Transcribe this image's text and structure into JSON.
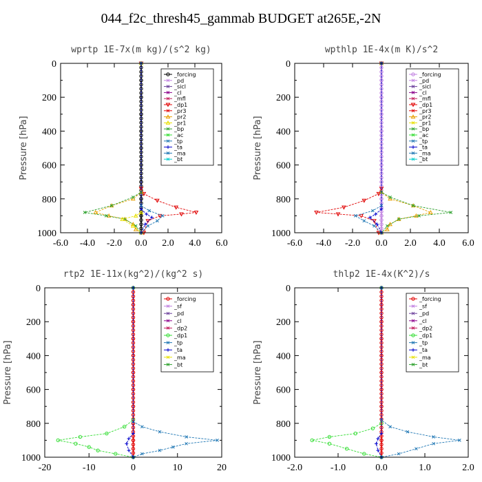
{
  "title": "044_f2c_thresh45_gammab  BUDGET at265E,-2N",
  "chart_data": [
    {
      "type": "line",
      "title": "wprtp  1E-7x(m kg)/(s^2 kg)",
      "ylabel": "Pressure [hPa]",
      "xlim": [
        -6,
        6
      ],
      "ylim": [
        1000,
        0
      ],
      "xticks": [
        "-6.0",
        "-4.0",
        "-2.0",
        "0.0",
        "2.0",
        "4.0",
        "6.0"
      ],
      "yticks": [
        "0",
        "200",
        "400",
        "600",
        "800",
        "1000"
      ],
      "legend": [
        "_forcing",
        "_pd",
        "_sicl",
        "_cl",
        "_mfl",
        "_dp1",
        "_pr3",
        "_pr2",
        "_pr1",
        "_bp",
        "_ac",
        "_tp",
        "_ta",
        "_ma",
        "_bt"
      ],
      "series": [
        {
          "name": "_forcing",
          "color": "#000000",
          "marker": "o",
          "x": [
            0,
            0,
            0,
            0,
            0,
            0,
            0,
            0,
            0,
            0,
            0
          ],
          "y": [
            0,
            100,
            200,
            300,
            400,
            500,
            600,
            700,
            800,
            900,
            1000
          ]
        },
        {
          "name": "_dp1",
          "color": "#e00000",
          "marker": "v",
          "x": [
            0,
            0,
            0.2,
            1.2,
            2.6,
            4.1,
            3.0,
            1.4,
            0.5,
            0.2
          ],
          "y": [
            0,
            740,
            770,
            810,
            850,
            880,
            890,
            900,
            930,
            1000
          ]
        },
        {
          "name": "_pr2",
          "color": "#e8a000",
          "marker": "^",
          "x": [
            0,
            0,
            -0.6,
            -2.2,
            -3.4,
            -2.4,
            -1.2,
            -0.6,
            -0.4,
            0
          ],
          "y": [
            0,
            760,
            800,
            840,
            880,
            900,
            920,
            950,
            980,
            1000
          ]
        },
        {
          "name": "_bp",
          "color": "#2ca02c",
          "marker": "x",
          "x": [
            0,
            0,
            -0.6,
            -2.2,
            -4.2,
            -2.6,
            -1.2,
            -0.4,
            0
          ],
          "y": [
            0,
            760,
            790,
            840,
            880,
            900,
            920,
            960,
            1000
          ]
        },
        {
          "name": "_pr1",
          "color": "#e8e000",
          "marker": "^",
          "x": [
            0,
            0,
            -0.4,
            -1.4,
            -0.6,
            0
          ],
          "y": [
            0,
            880,
            900,
            920,
            960,
            1000
          ]
        },
        {
          "name": "_tp",
          "color": "#1f77b4",
          "marker": "x",
          "x": [
            0,
            0,
            0.6,
            1.6,
            1.2,
            0.5,
            0
          ],
          "y": [
            0,
            840,
            870,
            900,
            930,
            960,
            1000
          ]
        },
        {
          "name": "_ta",
          "color": "#0000cc",
          "marker": "+",
          "x": [
            0,
            0,
            0.4,
            0.8,
            0.3,
            0
          ],
          "y": [
            0,
            860,
            890,
            910,
            950,
            1000
          ]
        }
      ]
    },
    {
      "type": "line",
      "title": "wpthlp  1E-4x(m K)/s^2",
      "ylabel": "Pressure [hPa]",
      "xlim": [
        -6,
        6
      ],
      "ylim": [
        1000,
        0
      ],
      "xticks": [
        "-6.0",
        "-4.0",
        "-2.0",
        "0.0",
        "2.0",
        "4.0",
        "6.0"
      ],
      "yticks": [
        "0",
        "200",
        "400",
        "600",
        "800",
        "1000"
      ],
      "legend": [
        "_forcing",
        "_pd",
        "_sicl",
        "_cl",
        "_mfl",
        "_dp1",
        "_pr3",
        "_pr2",
        "_pr1",
        "_bp",
        "_ac",
        "_tp",
        "_ta",
        "_ma",
        "_bt"
      ],
      "series": [
        {
          "name": "_forcing",
          "color": "#c080e0",
          "marker": "o",
          "x": [
            0,
            0,
            0,
            0,
            0,
            0,
            0,
            0,
            0,
            0,
            0
          ],
          "y": [
            0,
            100,
            200,
            300,
            400,
            500,
            600,
            700,
            800,
            900,
            1000
          ]
        },
        {
          "name": "_dp1",
          "color": "#e00000",
          "marker": "v",
          "x": [
            0,
            0,
            -0.2,
            -1.2,
            -2.6,
            -4.5,
            -3.0,
            -1.4,
            -0.5,
            -0.2
          ],
          "y": [
            0,
            740,
            770,
            810,
            850,
            880,
            890,
            900,
            930,
            1000
          ]
        },
        {
          "name": "_pr2",
          "color": "#e8a000",
          "marker": "^",
          "x": [
            0,
            0,
            0.6,
            2.2,
            3.4,
            2.4,
            1.2,
            0.6,
            0.4,
            0
          ],
          "y": [
            0,
            760,
            800,
            840,
            880,
            900,
            920,
            950,
            980,
            1000
          ]
        },
        {
          "name": "_bp",
          "color": "#2ca02c",
          "marker": "x",
          "x": [
            0,
            0,
            0.6,
            2.2,
            4.8,
            2.6,
            1.2,
            0.4,
            0
          ],
          "y": [
            0,
            760,
            790,
            840,
            880,
            900,
            920,
            960,
            1000
          ]
        },
        {
          "name": "_tp",
          "color": "#1f77b4",
          "marker": "x",
          "x": [
            0,
            0,
            -0.6,
            -1.8,
            -1.2,
            -0.5,
            0
          ],
          "y": [
            0,
            840,
            870,
            900,
            930,
            960,
            1000
          ]
        },
        {
          "name": "_ta",
          "color": "#0000cc",
          "marker": "+",
          "x": [
            0,
            0,
            -0.4,
            -0.8,
            -0.3,
            0
          ],
          "y": [
            0,
            860,
            890,
            910,
            950,
            1000
          ]
        }
      ]
    },
    {
      "type": "line",
      "title": "rtp2  1E-11x(kg^2)/(kg^2 s)",
      "ylabel": "Pressure [hPa]",
      "xlim": [
        -20,
        20
      ],
      "ylim": [
        1000,
        0
      ],
      "xticks": [
        "-20",
        "-10",
        "0",
        "10",
        "20"
      ],
      "yticks": [
        "0",
        "200",
        "400",
        "600",
        "800",
        "1000"
      ],
      "legend": [
        "_forcing",
        "_sf",
        "_pd",
        "_cl",
        "_dp2",
        "_dp1",
        "_tp",
        "_ta",
        "_ma",
        "_bt"
      ],
      "series": [
        {
          "name": "_forcing",
          "color": "#e00000",
          "marker": "o",
          "x": [
            0,
            0,
            0,
            0,
            0,
            0,
            0,
            0,
            0,
            0,
            0
          ],
          "y": [
            0,
            100,
            200,
            300,
            400,
            500,
            600,
            700,
            800,
            900,
            1000
          ]
        },
        {
          "name": "_dp1",
          "color": "#33dd33",
          "marker": "o",
          "x": [
            0,
            0,
            -2,
            -6,
            -12,
            -17,
            -13,
            -10,
            -8,
            -4,
            0
          ],
          "y": [
            0,
            780,
            820,
            860,
            880,
            900,
            920,
            940,
            960,
            980,
            1000
          ]
        },
        {
          "name": "_tp",
          "color": "#1f77b4",
          "marker": "x",
          "x": [
            0,
            0,
            2,
            6,
            12,
            19,
            12,
            9,
            6,
            2,
            0
          ],
          "y": [
            0,
            790,
            820,
            850,
            880,
            900,
            920,
            940,
            960,
            980,
            1000
          ]
        },
        {
          "name": "_ta",
          "color": "#0000cc",
          "marker": "+",
          "x": [
            0,
            0,
            -1,
            -1.5,
            -1,
            0
          ],
          "y": [
            0,
            860,
            890,
            920,
            960,
            1000
          ]
        }
      ]
    },
    {
      "type": "line",
      "title": "thlp2  1E-4x(K^2)/s",
      "ylabel": "Pressure [hPa]",
      "xlim": [
        -2,
        2
      ],
      "ylim": [
        1000,
        0
      ],
      "xticks": [
        "-2.0",
        "-1.0",
        "0.0",
        "1.0",
        "2.0"
      ],
      "yticks": [
        "0",
        "200",
        "400",
        "600",
        "800",
        "1000"
      ],
      "legend": [
        "_forcing",
        "_sf",
        "_pd",
        "_cl",
        "_dp2",
        "_dp1",
        "_tp",
        "_ta",
        "_ma",
        "_bt"
      ],
      "series": [
        {
          "name": "_forcing",
          "color": "#e00000",
          "marker": "o",
          "x": [
            0,
            0,
            0,
            0,
            0,
            0,
            0,
            0,
            0,
            0,
            0
          ],
          "y": [
            0,
            100,
            200,
            300,
            400,
            500,
            600,
            700,
            800,
            900,
            1000
          ]
        },
        {
          "name": "_dp1",
          "color": "#33dd33",
          "marker": "o",
          "x": [
            0,
            0,
            -0.2,
            -0.6,
            -1.2,
            -1.6,
            -1.2,
            -0.8,
            -0.4,
            0
          ],
          "y": [
            0,
            800,
            830,
            860,
            880,
            900,
            920,
            950,
            980,
            1000
          ]
        },
        {
          "name": "_tp",
          "color": "#1f77b4",
          "marker": "x",
          "x": [
            0,
            0,
            0.2,
            0.6,
            1.2,
            1.8,
            1.2,
            0.8,
            0.4,
            0
          ],
          "y": [
            0,
            780,
            820,
            850,
            880,
            900,
            920,
            950,
            980,
            1000
          ]
        },
        {
          "name": "_ta",
          "color": "#0000cc",
          "marker": "+",
          "x": [
            0,
            0,
            -0.08,
            -0.12,
            -0.08,
            0
          ],
          "y": [
            0,
            860,
            890,
            920,
            960,
            1000
          ]
        }
      ]
    }
  ]
}
